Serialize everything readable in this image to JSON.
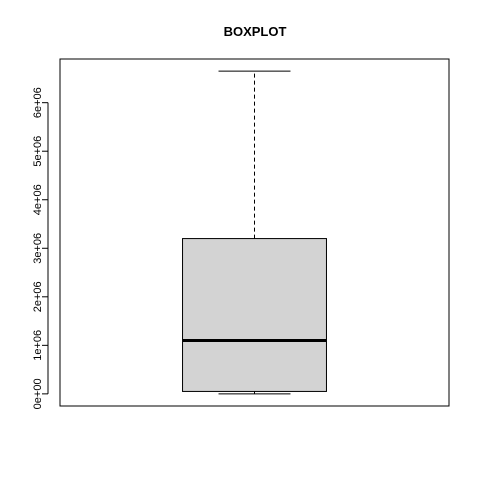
{
  "chart_data": {
    "type": "box",
    "title": "BOXPLOT",
    "xlabel": "",
    "ylabel": "",
    "ylim": [
      -250000,
      6900000
    ],
    "yticks": [
      0,
      1000000,
      2000000,
      3000000,
      4000000,
      5000000,
      6000000
    ],
    "ytick_labels": [
      "0e+00",
      "1e+06",
      "2e+06",
      "3e+06",
      "4e+06",
      "5e+06",
      "6e+06"
    ],
    "grid": false,
    "legend": "none",
    "boxes": [
      {
        "min": 0,
        "q1": 50000,
        "median": 1100000,
        "q3": 3200000,
        "max": 6650000
      }
    ],
    "colors": {
      "box_fill": "#d3d3d3",
      "stroke": "#000000"
    }
  }
}
